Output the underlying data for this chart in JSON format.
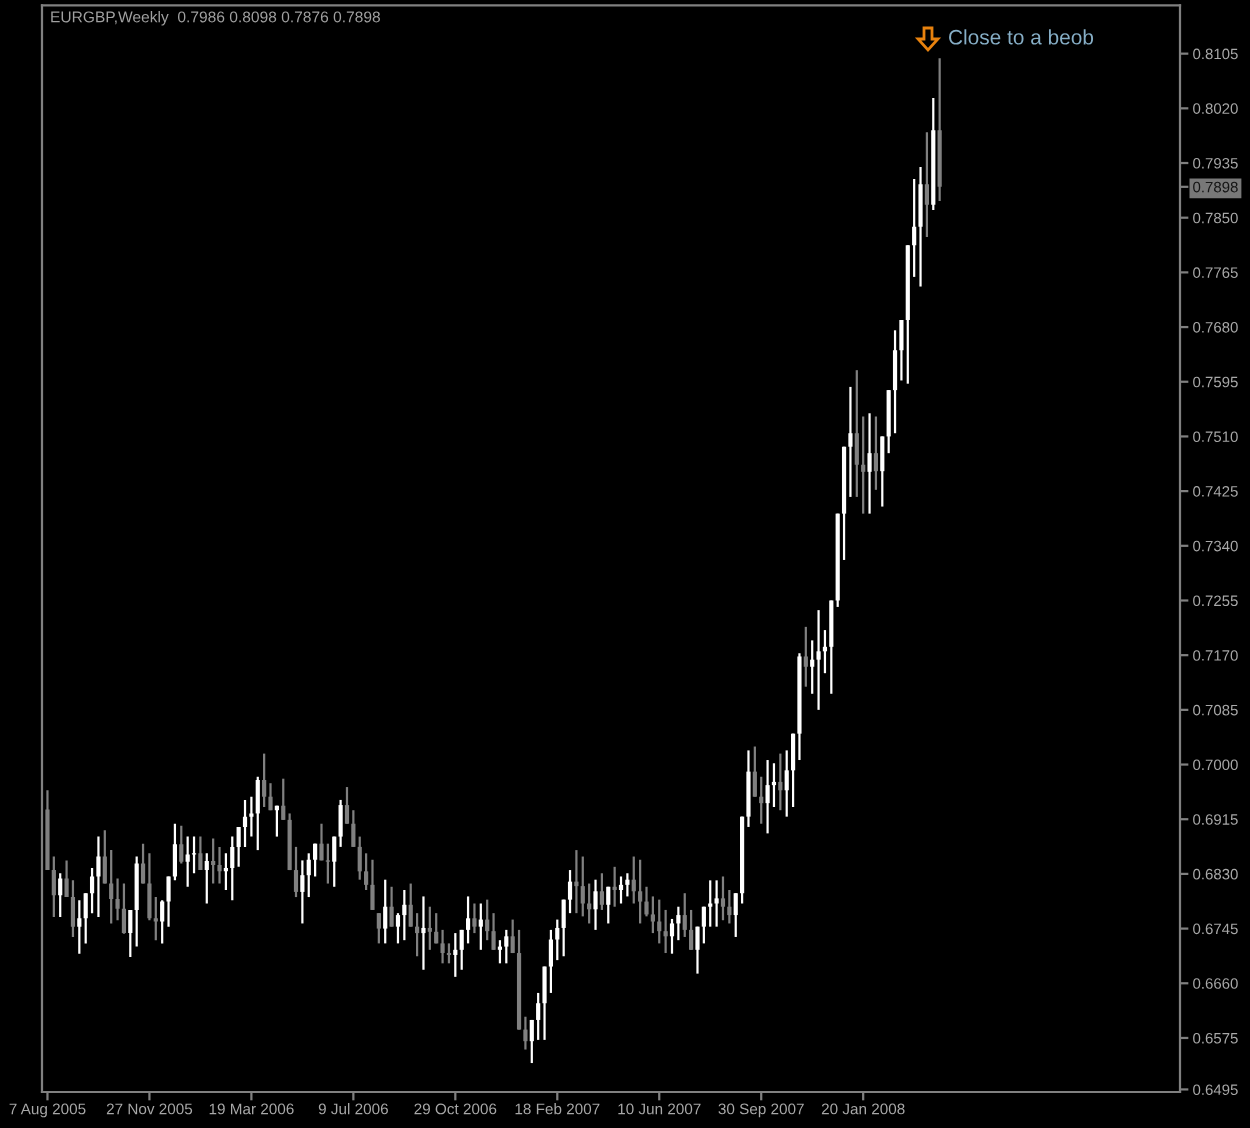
{
  "chart_data": {
    "type": "candlestick",
    "title": "EURGBP,Weekly  0.7986 0.8098 0.7876 0.7898",
    "x": [
      "2005-08-07",
      "2005-08-14",
      "2005-08-21",
      "2005-08-28",
      "2005-09-04",
      "2005-09-11",
      "2005-09-18",
      "2005-09-25",
      "2005-10-02",
      "2005-10-09",
      "2005-10-16",
      "2005-10-23",
      "2005-10-30",
      "2005-11-06",
      "2005-11-13",
      "2005-11-20",
      "2005-11-27",
      "2005-12-04",
      "2005-12-11",
      "2005-12-18",
      "2005-12-25",
      "2006-01-01",
      "2006-01-08",
      "2006-01-15",
      "2006-01-22",
      "2006-01-29",
      "2006-02-05",
      "2006-02-12",
      "2006-02-19",
      "2006-02-26",
      "2006-03-05",
      "2006-03-12",
      "2006-03-19",
      "2006-03-26",
      "2006-04-02",
      "2006-04-09",
      "2006-04-16",
      "2006-04-23",
      "2006-04-30",
      "2006-05-07",
      "2006-05-14",
      "2006-05-21",
      "2006-05-28",
      "2006-06-04",
      "2006-06-11",
      "2006-06-18",
      "2006-06-25",
      "2006-07-02",
      "2006-07-09",
      "2006-07-16",
      "2006-07-23",
      "2006-07-30",
      "2006-08-06",
      "2006-08-13",
      "2006-08-20",
      "2006-08-27",
      "2006-09-03",
      "2006-09-10",
      "2006-09-17",
      "2006-09-24",
      "2006-10-01",
      "2006-10-08",
      "2006-10-15",
      "2006-10-22",
      "2006-10-29",
      "2006-11-05",
      "2006-11-12",
      "2006-11-19",
      "2006-11-26",
      "2006-12-03",
      "2006-12-10",
      "2006-12-17",
      "2006-12-24",
      "2006-12-31",
      "2007-01-07",
      "2007-01-14",
      "2007-01-21",
      "2007-01-28",
      "2007-02-04",
      "2007-02-11",
      "2007-02-18",
      "2007-02-25",
      "2007-03-04",
      "2007-03-11",
      "2007-03-18",
      "2007-03-25",
      "2007-04-01",
      "2007-04-08",
      "2007-04-15",
      "2007-04-22",
      "2007-04-29",
      "2007-05-06",
      "2007-05-13",
      "2007-05-20",
      "2007-05-27",
      "2007-06-03",
      "2007-06-10",
      "2007-06-17",
      "2007-06-24",
      "2007-07-01",
      "2007-07-08",
      "2007-07-15",
      "2007-07-22",
      "2007-07-29",
      "2007-08-05",
      "2007-08-12",
      "2007-08-19",
      "2007-08-26",
      "2007-09-02",
      "2007-09-09",
      "2007-09-16",
      "2007-09-23",
      "2007-09-30",
      "2007-10-07",
      "2007-10-14",
      "2007-10-21",
      "2007-10-28",
      "2007-11-04",
      "2007-11-11",
      "2007-11-18",
      "2007-11-25",
      "2007-12-02",
      "2007-12-09",
      "2007-12-16",
      "2007-12-23",
      "2007-12-30",
      "2008-01-06",
      "2008-01-13",
      "2008-01-20",
      "2008-01-27",
      "2008-02-03",
      "2008-02-10",
      "2008-02-17",
      "2008-02-24",
      "2008-03-02",
      "2008-03-09",
      "2008-03-16",
      "2008-03-23",
      "2008-03-30",
      "2008-04-06",
      "2008-04-13"
    ],
    "ohlc": [
      [
        0.693,
        0.696,
        0.6836,
        0.6836
      ],
      [
        0.6836,
        0.6857,
        0.6763,
        0.6797
      ],
      [
        0.6797,
        0.6831,
        0.6763,
        0.6823
      ],
      [
        0.6823,
        0.6851,
        0.6794,
        0.6794
      ],
      [
        0.6794,
        0.682,
        0.6732,
        0.6748
      ],
      [
        0.6748,
        0.6789,
        0.6706,
        0.6761
      ],
      [
        0.6761,
        0.68,
        0.6722,
        0.68
      ],
      [
        0.68,
        0.6839,
        0.6769,
        0.6826
      ],
      [
        0.6826,
        0.6888,
        0.6763,
        0.6857
      ],
      [
        0.6857,
        0.6898,
        0.6815,
        0.6815
      ],
      [
        0.6815,
        0.6867,
        0.6753,
        0.6791
      ],
      [
        0.6791,
        0.6823,
        0.6758,
        0.6776
      ],
      [
        0.6776,
        0.6815,
        0.6737,
        0.6738
      ],
      [
        0.6738,
        0.6774,
        0.6701,
        0.6774
      ],
      [
        0.6774,
        0.6857,
        0.6717,
        0.6846
      ],
      [
        0.6846,
        0.6877,
        0.6815,
        0.6815
      ],
      [
        0.6815,
        0.6862,
        0.6758,
        0.6761
      ],
      [
        0.6761,
        0.6794,
        0.6727,
        0.6756
      ],
      [
        0.6756,
        0.6789,
        0.6722,
        0.6787
      ],
      [
        0.6787,
        0.6826,
        0.6748,
        0.6826
      ],
      [
        0.6826,
        0.6908,
        0.682,
        0.6876
      ],
      [
        0.6876,
        0.6905,
        0.6846,
        0.6849
      ],
      [
        0.6849,
        0.6888,
        0.681,
        0.686
      ],
      [
        0.686,
        0.6888,
        0.6831,
        0.6862
      ],
      [
        0.6862,
        0.6888,
        0.6836,
        0.6836
      ],
      [
        0.6836,
        0.6862,
        0.6784,
        0.685
      ],
      [
        0.685,
        0.6885,
        0.6815,
        0.6844
      ],
      [
        0.6844,
        0.6872,
        0.6815,
        0.6834
      ],
      [
        0.6834,
        0.6862,
        0.6805,
        0.6839
      ],
      [
        0.6839,
        0.6888,
        0.6789,
        0.6872
      ],
      [
        0.6872,
        0.6903,
        0.6841,
        0.6903
      ],
      [
        0.6903,
        0.6945,
        0.6872,
        0.6919
      ],
      [
        0.6919,
        0.695,
        0.6888,
        0.6924
      ],
      [
        0.6924,
        0.6981,
        0.6867,
        0.6976
      ],
      [
        0.6976,
        0.7017,
        0.6934,
        0.695
      ],
      [
        0.695,
        0.6971,
        0.6929,
        0.6929
      ],
      [
        0.6929,
        0.6936,
        0.6888,
        0.6936
      ],
      [
        0.6936,
        0.6978,
        0.6914,
        0.6914
      ],
      [
        0.6914,
        0.6924,
        0.6836,
        0.6836
      ],
      [
        0.6836,
        0.6872,
        0.6794,
        0.6802
      ],
      [
        0.6802,
        0.6851,
        0.6753,
        0.6828
      ],
      [
        0.6828,
        0.6862,
        0.6794,
        0.6852
      ],
      [
        0.6852,
        0.6877,
        0.6826,
        0.6877
      ],
      [
        0.6877,
        0.6908,
        0.6851,
        0.6851
      ],
      [
        0.6851,
        0.6877,
        0.6815,
        0.6849
      ],
      [
        0.6849,
        0.6888,
        0.681,
        0.6888
      ],
      [
        0.6888,
        0.6945,
        0.6872,
        0.6937
      ],
      [
        0.6937,
        0.6965,
        0.6908,
        0.6908
      ],
      [
        0.6908,
        0.6929,
        0.6872,
        0.6872
      ],
      [
        0.6872,
        0.6888,
        0.6821,
        0.6834
      ],
      [
        0.6834,
        0.6862,
        0.6805,
        0.6813
      ],
      [
        0.6813,
        0.6852,
        0.6774,
        0.6774
      ],
      [
        0.6769,
        0.6769,
        0.6722,
        0.6745
      ],
      [
        0.6745,
        0.6821,
        0.6722,
        0.6779
      ],
      [
        0.6779,
        0.681,
        0.6748,
        0.6748
      ],
      [
        0.6748,
        0.6769,
        0.6722,
        0.6766
      ],
      [
        0.6766,
        0.6805,
        0.6727,
        0.6782
      ],
      [
        0.6782,
        0.6815,
        0.6748,
        0.6748
      ],
      [
        0.6748,
        0.6769,
        0.6702,
        0.6738
      ],
      [
        0.6738,
        0.6795,
        0.6681,
        0.6746
      ],
      [
        0.6746,
        0.6779,
        0.6712,
        0.674
      ],
      [
        0.674,
        0.6769,
        0.6722,
        0.6722
      ],
      [
        0.6722,
        0.6743,
        0.6691,
        0.6707
      ],
      [
        0.6707,
        0.6722,
        0.6691,
        0.6704
      ],
      [
        0.6704,
        0.6738,
        0.667,
        0.6712
      ],
      [
        0.6712,
        0.6743,
        0.6681,
        0.6743
      ],
      [
        0.6743,
        0.6795,
        0.6722,
        0.6761
      ],
      [
        0.6761,
        0.6784,
        0.6738,
        0.6748
      ],
      [
        0.6748,
        0.6784,
        0.6712,
        0.6759
      ],
      [
        0.6759,
        0.679,
        0.6727,
        0.6741
      ],
      [
        0.6741,
        0.6769,
        0.6712,
        0.6712
      ],
      [
        0.6712,
        0.6727,
        0.6691,
        0.6717
      ],
      [
        0.6717,
        0.6743,
        0.6691,
        0.6733
      ],
      [
        0.6733,
        0.6759,
        0.6707,
        0.6707
      ],
      [
        0.6707,
        0.6743,
        0.6588,
        0.6588
      ],
      [
        0.6588,
        0.6608,
        0.6557,
        0.657
      ],
      [
        0.657,
        0.6603,
        0.6536,
        0.6603
      ],
      [
        0.6603,
        0.6645,
        0.6572,
        0.6629
      ],
      [
        0.6629,
        0.6686,
        0.6572,
        0.6686
      ],
      [
        0.6686,
        0.6743,
        0.6645,
        0.6728
      ],
      [
        0.6728,
        0.6759,
        0.6696,
        0.6746
      ],
      [
        0.6746,
        0.679,
        0.6702,
        0.679
      ],
      [
        0.679,
        0.6836,
        0.6769,
        0.6818
      ],
      [
        0.6818,
        0.6867,
        0.6769,
        0.6811
      ],
      [
        0.6811,
        0.6857,
        0.6764,
        0.6784
      ],
      [
        0.6784,
        0.6815,
        0.6753,
        0.6775
      ],
      [
        0.6775,
        0.6821,
        0.6743,
        0.6803
      ],
      [
        0.6803,
        0.6831,
        0.6774,
        0.6782
      ],
      [
        0.6782,
        0.681,
        0.6753,
        0.681
      ],
      [
        0.681,
        0.6841,
        0.6779,
        0.6805
      ],
      [
        0.6805,
        0.6826,
        0.6784,
        0.6813
      ],
      [
        0.6813,
        0.6831,
        0.6795,
        0.6821
      ],
      [
        0.6821,
        0.6857,
        0.6784,
        0.6803
      ],
      [
        0.6803,
        0.6852,
        0.6753,
        0.6787
      ],
      [
        0.6787,
        0.681,
        0.6764,
        0.6767
      ],
      [
        0.6767,
        0.6795,
        0.6738,
        0.6756
      ],
      [
        0.6756,
        0.679,
        0.6722,
        0.6741
      ],
      [
        0.6741,
        0.6774,
        0.6707,
        0.6733
      ],
      [
        0.6733,
        0.676,
        0.6706,
        0.6753
      ],
      [
        0.6753,
        0.6779,
        0.6727,
        0.6766
      ],
      [
        0.6766,
        0.68,
        0.6732,
        0.6743
      ],
      [
        0.6743,
        0.6774,
        0.6712,
        0.6712
      ],
      [
        0.6712,
        0.6748,
        0.6675,
        0.6748
      ],
      [
        0.6748,
        0.6779,
        0.6722,
        0.6779
      ],
      [
        0.6779,
        0.682,
        0.6748,
        0.6784
      ],
      [
        0.6784,
        0.682,
        0.6748,
        0.6792
      ],
      [
        0.6792,
        0.6826,
        0.6758,
        0.6779
      ],
      [
        0.6779,
        0.6805,
        0.6753,
        0.6766
      ],
      [
        0.6766,
        0.68,
        0.6732,
        0.68
      ],
      [
        0.68,
        0.6919,
        0.6784,
        0.6919
      ],
      [
        0.6919,
        0.7022,
        0.6903,
        0.6989
      ],
      [
        0.6989,
        0.7028,
        0.695,
        0.695
      ],
      [
        0.695,
        0.6981,
        0.6908,
        0.694
      ],
      [
        0.694,
        0.7007,
        0.6893,
        0.6968
      ],
      [
        0.6968,
        0.7002,
        0.6934,
        0.6973
      ],
      [
        0.6973,
        0.7017,
        0.6929,
        0.696
      ],
      [
        0.696,
        0.7022,
        0.6919,
        0.6991
      ],
      [
        0.6991,
        0.7048,
        0.6934,
        0.7048
      ],
      [
        0.7048,
        0.7173,
        0.7007,
        0.7168
      ],
      [
        0.7168,
        0.7214,
        0.7121,
        0.7152
      ],
      [
        0.7152,
        0.7193,
        0.711,
        0.7163
      ],
      [
        0.7163,
        0.724,
        0.7085,
        0.7176
      ],
      [
        0.7176,
        0.7209,
        0.7142,
        0.7183
      ],
      [
        0.7183,
        0.7255,
        0.711,
        0.7255
      ],
      [
        0.7255,
        0.739,
        0.7245,
        0.739
      ],
      [
        0.739,
        0.7494,
        0.7318,
        0.7494
      ],
      [
        0.7494,
        0.7587,
        0.7416,
        0.7515
      ],
      [
        0.7515,
        0.7613,
        0.7416,
        0.7466
      ],
      [
        0.7466,
        0.7541,
        0.739,
        0.7455
      ],
      [
        0.7455,
        0.7546,
        0.739,
        0.7484
      ],
      [
        0.7484,
        0.7541,
        0.7427,
        0.7456
      ],
      [
        0.7456,
        0.751,
        0.7401,
        0.751
      ],
      [
        0.751,
        0.7582,
        0.7484,
        0.7582
      ],
      [
        0.7582,
        0.7675,
        0.7515,
        0.7644
      ],
      [
        0.7644,
        0.7691,
        0.7597,
        0.7691
      ],
      [
        0.7691,
        0.7807,
        0.7592,
        0.7807
      ],
      [
        0.7807,
        0.791,
        0.7758,
        0.7836
      ],
      [
        0.7836,
        0.7929,
        0.7743,
        0.7902
      ],
      [
        0.7902,
        0.7983,
        0.782,
        0.787
      ],
      [
        0.787,
        0.8036,
        0.7862,
        0.7986
      ],
      [
        0.7986,
        0.8098,
        0.7876,
        0.7898
      ]
    ],
    "colors": [
      "#808080",
      "#808080",
      "#ffffff",
      "#808080",
      "#808080",
      "#ffffff",
      "#ffffff",
      "#ffffff",
      "#ffffff",
      "#808080",
      "#808080",
      "#808080",
      "#808080",
      "#ffffff",
      "#ffffff",
      "#808080",
      "#808080",
      "#808080",
      "#ffffff",
      "#ffffff",
      "#ffffff",
      "#808080",
      "#ffffff",
      "#ffffff",
      "#808080",
      "#ffffff",
      "#808080",
      "#808080",
      "#ffffff",
      "#ffffff",
      "#ffffff",
      "#ffffff",
      "#ffffff",
      "#ffffff",
      "#808080",
      "#808080",
      "#ffffff",
      "#808080",
      "#808080",
      "#808080",
      "#ffffff",
      "#ffffff",
      "#ffffff",
      "#808080",
      "#808080",
      "#ffffff",
      "#ffffff",
      "#808080",
      "#808080",
      "#808080",
      "#808080",
      "#808080",
      "#808080",
      "#ffffff",
      "#808080",
      "#ffffff",
      "#ffffff",
      "#808080",
      "#808080",
      "#ffffff",
      "#808080",
      "#808080",
      "#808080",
      "#808080",
      "#ffffff",
      "#ffffff",
      "#ffffff",
      "#808080",
      "#ffffff",
      "#808080",
      "#808080",
      "#ffffff",
      "#ffffff",
      "#808080",
      "#808080",
      "#808080",
      "#ffffff",
      "#ffffff",
      "#ffffff",
      "#ffffff",
      "#ffffff",
      "#ffffff",
      "#ffffff",
      "#808080",
      "#808080",
      "#808080",
      "#ffffff",
      "#808080",
      "#ffffff",
      "#808080",
      "#ffffff",
      "#ffffff",
      "#808080",
      "#808080",
      "#808080",
      "#808080",
      "#808080",
      "#808080",
      "#ffffff",
      "#ffffff",
      "#808080",
      "#808080",
      "#ffffff",
      "#ffffff",
      "#ffffff",
      "#ffffff",
      "#808080",
      "#808080",
      "#ffffff",
      "#ffffff",
      "#ffffff",
      "#808080",
      "#808080",
      "#ffffff",
      "#ffffff",
      "#808080",
      "#ffffff",
      "#ffffff",
      "#ffffff",
      "#808080",
      "#ffffff",
      "#ffffff",
      "#ffffff",
      "#ffffff",
      "#ffffff",
      "#ffffff",
      "#ffffff",
      "#808080",
      "#808080",
      "#ffffff",
      "#808080",
      "#ffffff",
      "#ffffff",
      "#ffffff",
      "#ffffff",
      "#ffffff",
      "#ffffff",
      "#ffffff",
      "#808080",
      "#ffffff",
      "#808080"
    ],
    "xlim": [
      "2005-08-01",
      "2009-01-02"
    ],
    "xticks": [
      {
        "value": "2005-08-07",
        "label": "7 Aug 2005"
      },
      {
        "value": "2005-11-27",
        "label": "27 Nov 2005"
      },
      {
        "value": "2006-03-19",
        "label": "19 Mar 2006"
      },
      {
        "value": "2006-07-09",
        "label": "9 Jul 2006"
      },
      {
        "value": "2006-10-29",
        "label": "29 Oct 2006"
      },
      {
        "value": "2007-02-18",
        "label": "18 Feb 2007"
      },
      {
        "value": "2007-06-10",
        "label": "10 Jun 2007"
      },
      {
        "value": "2007-09-30",
        "label": "30 Sep 2007"
      },
      {
        "value": "2008-01-20",
        "label": "20 Jan 2008"
      }
    ],
    "ylim": [
      0.6491,
      0.818
    ],
    "yticks": [
      0.8105,
      {
        "value": 0.802,
        "label": "0.8020"
      },
      0.7935,
      0.7898,
      {
        "value": 0.785,
        "label": "0.7850"
      },
      0.7765,
      {
        "value": 0.768,
        "label": "0.7680"
      },
      0.7595,
      {
        "value": 0.751,
        "label": "0.7510"
      },
      0.7425,
      {
        "value": 0.734,
        "label": "0.7340"
      },
      0.7255,
      {
        "value": 0.717,
        "label": "0.7170"
      },
      0.7085,
      {
        "value": 0.7,
        "label": "0.7000"
      },
      0.6915,
      {
        "value": 0.683,
        "label": "0.6830"
      },
      0.6745,
      {
        "value": 0.666,
        "label": "0.6660"
      },
      0.6575,
      0.6495
    ],
    "annotations": [
      "Close to a beob"
    ]
  }
}
